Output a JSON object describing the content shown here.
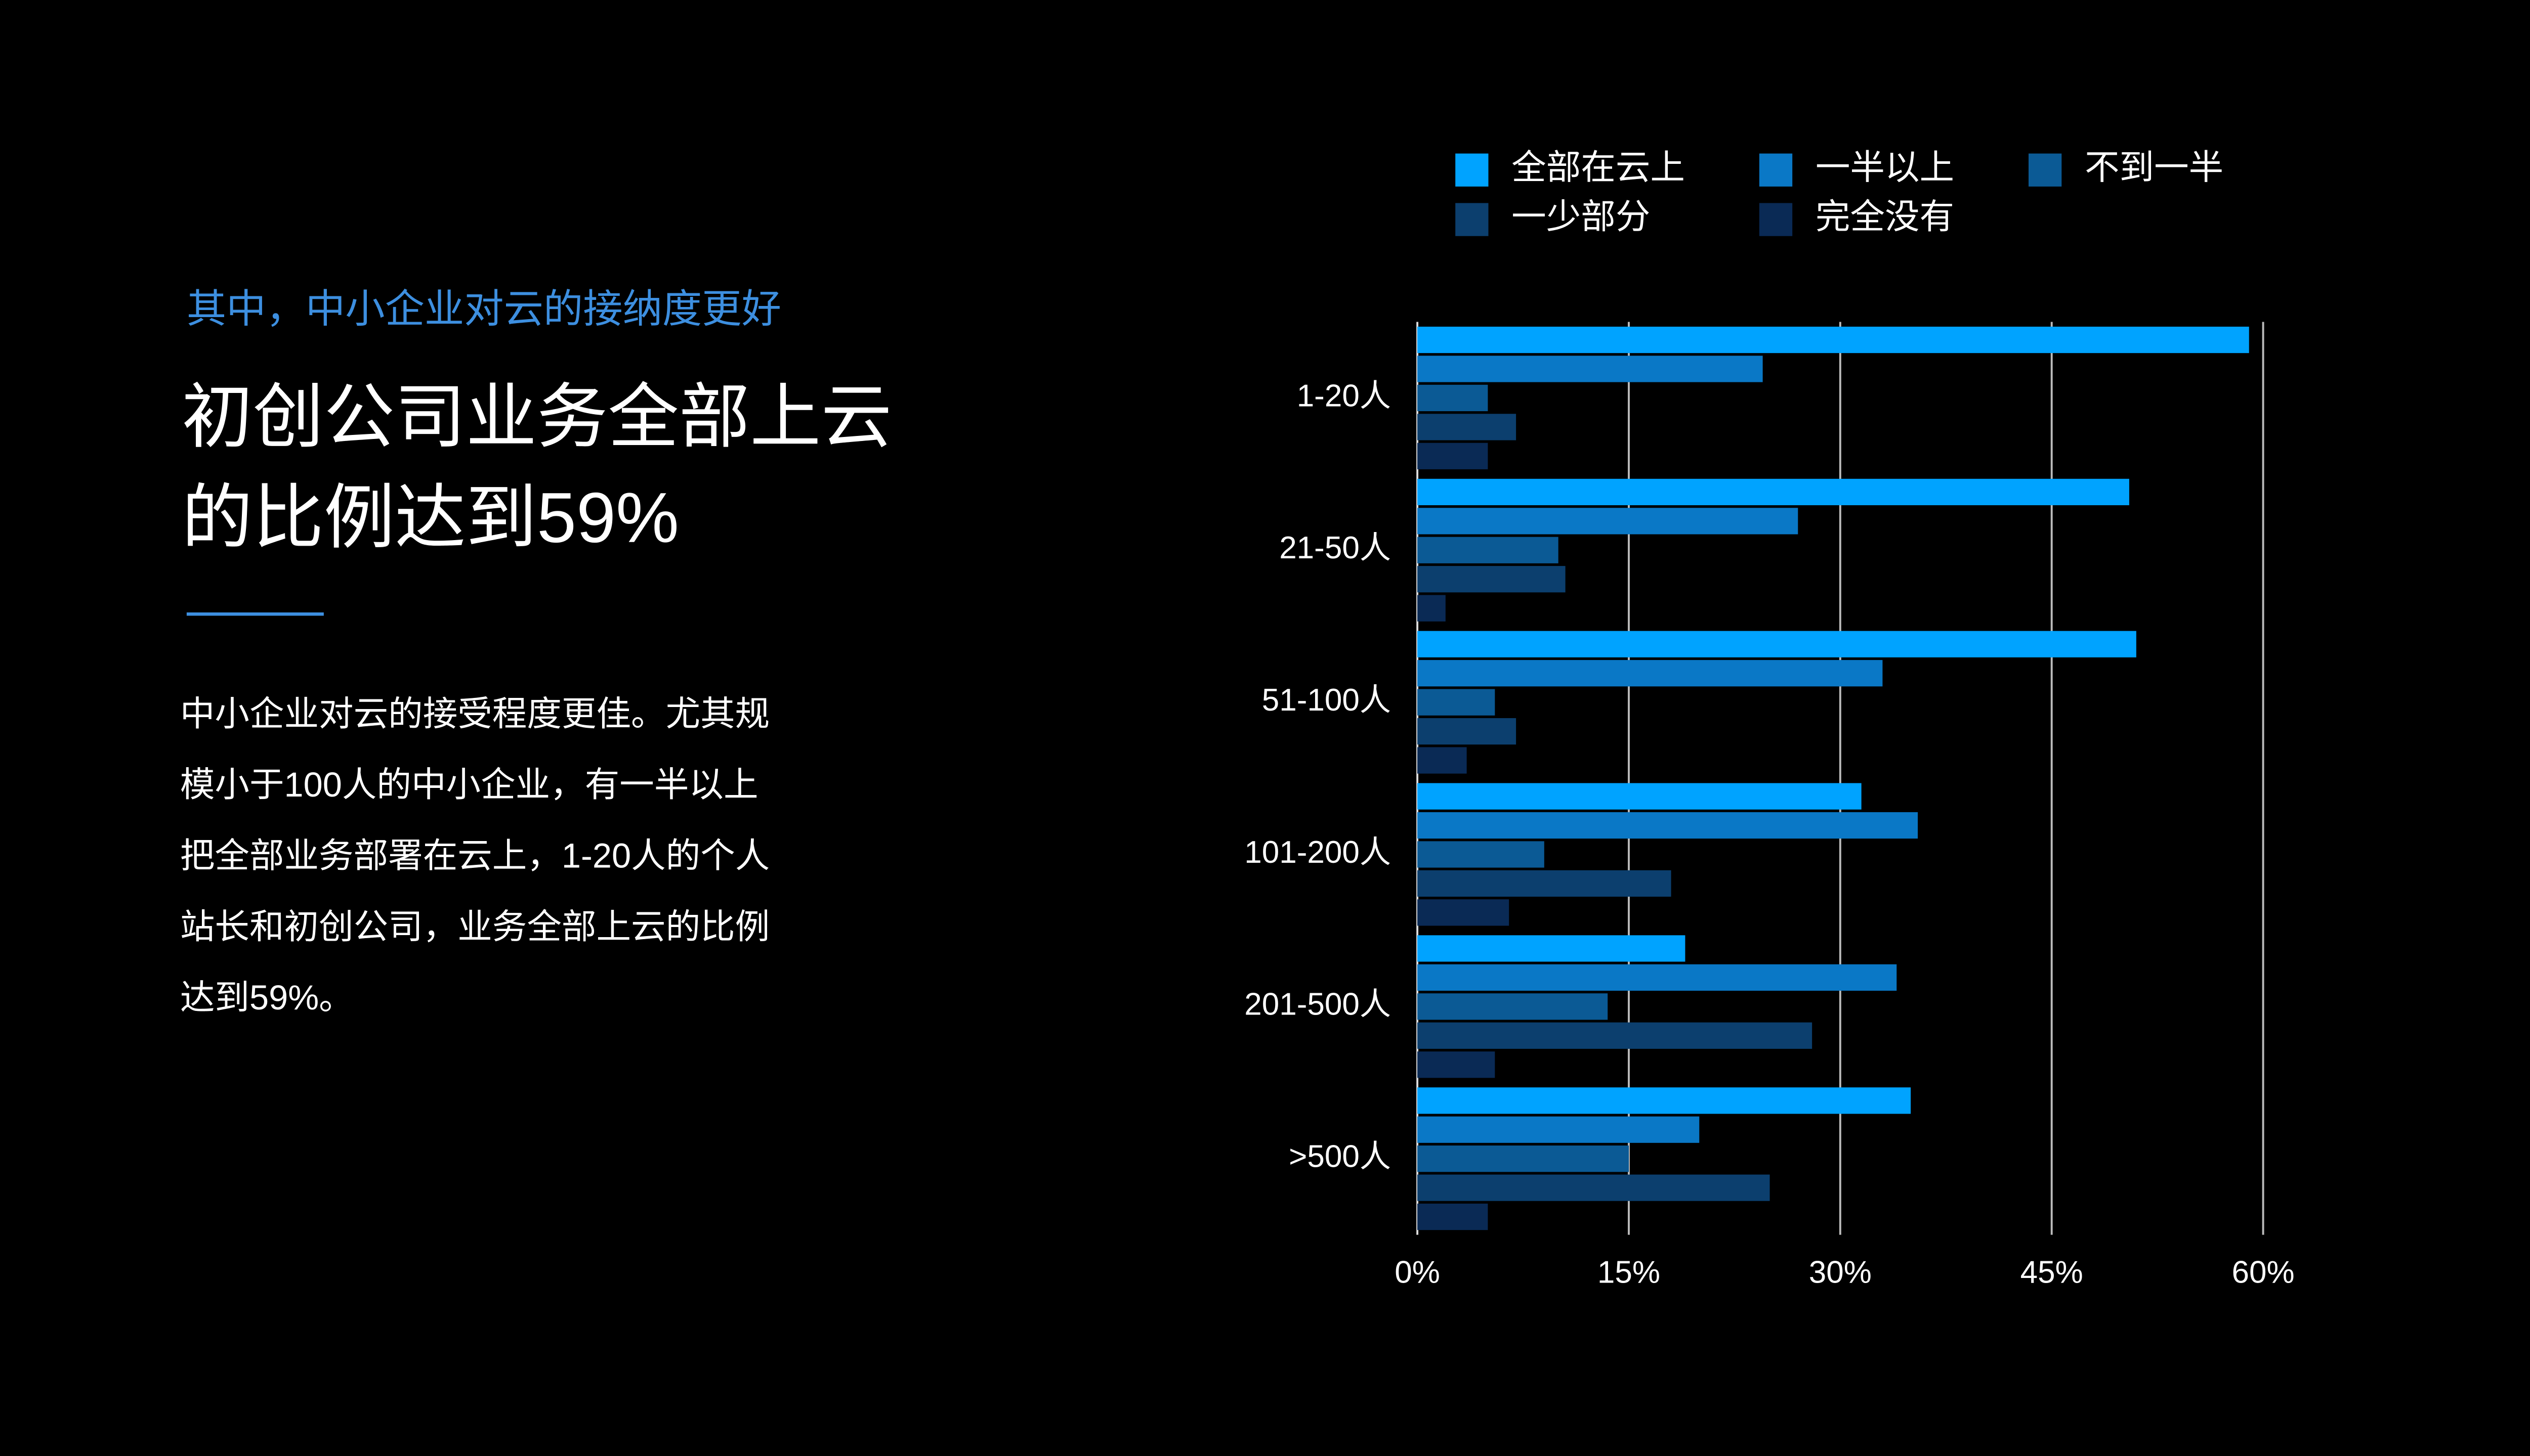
{
  "text": {
    "kicker": "其中，中小企业对云的接纳度更好",
    "title_lines": [
      "初创公司业务全部上云",
      "的比例达到59%"
    ],
    "body_lines": [
      "中小企业对云的接受程度更佳。尤其规",
      "模小于100人的中小企业，有一半以上",
      "把全部业务部署在云上，1-20人的个人",
      "站长和初创公司，业务全部上云的比例",
      "达到59%。"
    ]
  },
  "chart_data": {
    "type": "hbar",
    "categories": [
      "1-20人",
      "21-50人",
      "51-100人",
      "101-200人",
      "201-500人",
      ">500人"
    ],
    "series": [
      {
        "name": "全部在云上",
        "color": "#00a3ff",
        "values": [
          59,
          50.5,
          51,
          31.5,
          19,
          35
        ]
      },
      {
        "name": "一半以上",
        "color": "#0a78c6",
        "values": [
          24.5,
          27,
          33,
          35.5,
          34,
          20
        ]
      },
      {
        "name": "不到一半",
        "color": "#0b5a95",
        "values": [
          5,
          10,
          5.5,
          9,
          13.5,
          15
        ]
      },
      {
        "name": "一少部分",
        "color": "#0c3f6e",
        "values": [
          7,
          10.5,
          7,
          18,
          28,
          25
        ]
      },
      {
        "name": "完全没有",
        "color": "#0a2a55",
        "values": [
          5,
          2,
          3.5,
          6.5,
          5.5,
          5
        ]
      }
    ],
    "xlim": [
      0,
      60
    ],
    "xticks": [
      {
        "value": 0,
        "label": "0%"
      },
      {
        "value": 15,
        "label": "15%"
      },
      {
        "value": 30,
        "label": "30%"
      },
      {
        "value": 45,
        "label": "45%"
      },
      {
        "value": 60,
        "label": "60%"
      }
    ],
    "grid": true,
    "legend": "top"
  }
}
